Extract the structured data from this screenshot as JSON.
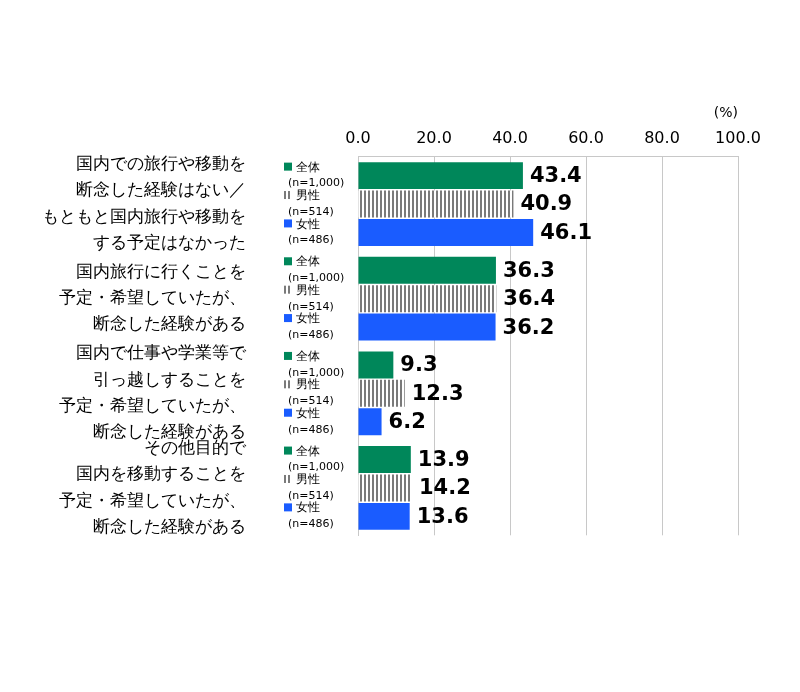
{
  "chart_data": {
    "type": "bar",
    "orientation": "horizontal",
    "x_label": "(%)",
    "categories": [
      "国内での旅行や移動を\n断念した経験はない／\nもともと国内旅行や移動を\nする予定はなかった",
      "国内旅行に行くことを\n予定・希望していたが、\n断念した経験がある",
      "国内で仕事や学業等で\n引っ越しすることを\n予定・希望していたが、\n断念した経験がある",
      "その他目的で\n国内を移動することを\n予定・希望していたが、\n断念した経験がある"
    ],
    "series": [
      {
        "name": "全体",
        "sample": "(n=1,000)",
        "color": "#00875a",
        "values": [
          43.4,
          36.3,
          9.3,
          13.9
        ]
      },
      {
        "name": "男性",
        "sample": "(n=514)",
        "color": "#7a7a7a",
        "values": [
          40.9,
          36.4,
          12.3,
          14.2
        ]
      },
      {
        "name": "女性",
        "sample": "(n=486)",
        "color": "#1a5cff",
        "values": [
          46.1,
          36.2,
          6.2,
          13.6
        ]
      }
    ],
    "xlim": [
      0,
      100
    ],
    "xticks": [
      {
        "value": 0,
        "label": "0.0"
      },
      {
        "value": 20,
        "label": "20.0"
      },
      {
        "value": 40,
        "label": "40.0"
      },
      {
        "value": 60,
        "label": "60.0"
      },
      {
        "value": 80,
        "label": "80.0"
      },
      {
        "value": 100,
        "label": "100.0"
      }
    ],
    "grid": true,
    "data_labels": true
  }
}
